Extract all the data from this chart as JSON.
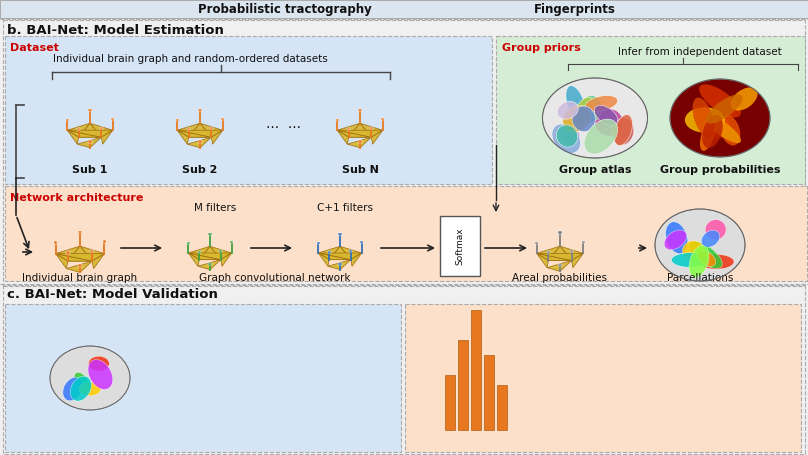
{
  "title_top_prob": "Probabilistic tractography",
  "title_top_fp": "Fingerprints",
  "section_b": "b. BAI-Net: Model Estimation",
  "section_c": "c. BAI-Net: Model Validation",
  "dataset_label": "Dataset",
  "dataset_desc": "Individual brain graph and random-ordered datasets",
  "sub_labels": [
    "Sub 1",
    "Sub 2",
    "Sub N"
  ],
  "dots": "···  ···",
  "group_priors_label": "Group priors",
  "group_priors_desc": "Infer from independent dataset",
  "group_atlas_label": "Group atlas",
  "group_prob_label": "Group probabilities",
  "network_arch_label": "Network architecture",
  "m_filters": "M filters",
  "c1_filters": "C+1 filters",
  "softmax_label": "Softmax",
  "net_labels": [
    "Individual brain graph",
    "Graph convolutional network",
    "Areal probabilities",
    "Parcellations"
  ],
  "bg_color": "#f0f0f0",
  "top_bar_color": "#dbe5f0",
  "dataset_box_color": "#d5e5f5",
  "group_priors_box_color": "#d5ecd5",
  "network_box_color": "#fce0ca",
  "section_c_left_color": "#d5e5f5",
  "section_c_right_color": "#fce0ca",
  "red_label_color": "#cc0000",
  "text_color": "#111111",
  "arrow_color": "#222222",
  "dash_border": "#aaaaaa",
  "orange_node": "#e87820",
  "green_node": "#40a040",
  "blue_node": "#3070b8",
  "gold_face": "#d8b830",
  "gold_edge": "#a07010",
  "grey_node": "#808080",
  "softmax_border": "#555555",
  "bracket_color": "#444444"
}
